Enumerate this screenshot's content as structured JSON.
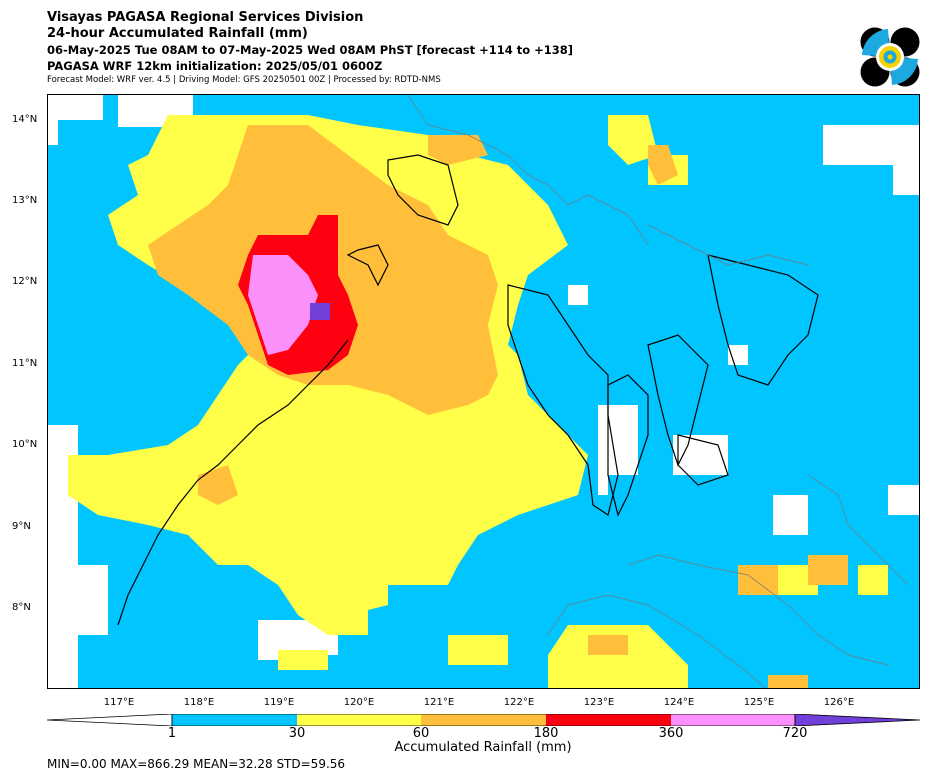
{
  "header": {
    "line1": "Visayas PAGASA Regional Services Division",
    "line2": "24-hour Accumulated Rainfall (mm)",
    "line3": "06-May-2025 Tue 08AM to 07-May-2025 Wed 08AM PhST [forecast +114 to +138]",
    "line4": "PAGASA WRF 12km initialization: 2025/05/01 0600Z",
    "line5": "Forecast Model: WRF ver. 4.5 | Driving Model: GFS 20250501 00Z | Processed by: RDTD-NMS"
  },
  "logo": {
    "icon": "pagasa-logo"
  },
  "map": {
    "lon_range": [
      116.0,
      126.9
    ],
    "lat_range": [
      7.0,
      14.3
    ],
    "lat_ticks": [
      "14°N",
      "13°N",
      "12°N",
      "11°N",
      "10°N",
      "9°N",
      "8°N"
    ],
    "lon_ticks": [
      "117°E",
      "118°E",
      "119°E",
      "120°E",
      "121°E",
      "122°E",
      "123°E",
      "124°E",
      "125°E",
      "126°E"
    ],
    "background_color": "#00c5ff"
  },
  "colorbar": {
    "title": "Accumulated Rainfall (mm)",
    "tick_labels": [
      "1",
      "30",
      "60",
      "180",
      "360",
      "720"
    ],
    "colors": [
      "#00c5ff",
      "#ffff4a",
      "#ffbf3a",
      "#ff0010",
      "#fb90fb",
      "#7040d8"
    ],
    "under_color": "#ffffff"
  },
  "stats": {
    "text": "MIN=0.00   MAX=866.29   MEAN=32.28   STD=59.56"
  }
}
